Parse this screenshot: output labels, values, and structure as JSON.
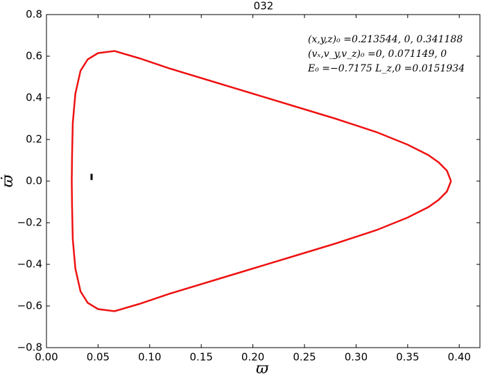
{
  "chart_data": {
    "type": "line",
    "title": "032",
    "xlabel": "ϖ",
    "ylabel": "ϖ̇",
    "annotations": [
      "(x,y,z)₀ =0.213544, 0, 0.341188",
      "(vₓ,v_y,v_z)₀ =0, 0.071149, 0",
      "E₀ =−0.7175  L_z,0 =0.0151934"
    ],
    "xlim": [
      0,
      0.42
    ],
    "ylim": [
      -0.8,
      0.8
    ],
    "xticks": [
      {
        "value": 0,
        "label": "0.00"
      },
      {
        "value": 0.05,
        "label": "0.05"
      },
      {
        "value": 0.1,
        "label": "0.10"
      },
      {
        "value": 0.15,
        "label": "0.15"
      },
      {
        "value": 0.2,
        "label": "0.20"
      },
      {
        "value": 0.25,
        "label": "0.25"
      },
      {
        "value": 0.3,
        "label": "0.30"
      },
      {
        "value": 0.35,
        "label": "0.35"
      },
      {
        "value": 0.4,
        "label": "0.40"
      }
    ],
    "yticks": [
      {
        "value": -0.8,
        "label": "−0.8"
      },
      {
        "value": -0.6,
        "label": "−0.6"
      },
      {
        "value": -0.4,
        "label": "−0.4"
      },
      {
        "value": -0.2,
        "label": "−0.2"
      },
      {
        "value": 0,
        "label": "0.0"
      },
      0.2,
      0.4,
      0.6,
      0.8
    ],
    "series": [
      {
        "color": "#ee1111",
        "x": [
          0.392,
          0.388,
          0.38,
          0.37,
          0.35,
          0.32,
          0.28,
          0.24,
          0.2,
          0.16,
          0.12,
          0.09,
          0.066,
          0.05,
          0.04,
          0.033,
          0.028,
          0.0255,
          0.0248,
          0.0245,
          0.0248,
          0.0255,
          0.028,
          0.033,
          0.04,
          0.05,
          0.066,
          0.09,
          0.12,
          0.16,
          0.2,
          0.24,
          0.28,
          0.32,
          0.35,
          0.37,
          0.38,
          0.388,
          0.392
        ],
        "y": [
          0,
          0.05,
          0.09,
          0.125,
          0.175,
          0.235,
          0.3,
          0.36,
          0.42,
          0.48,
          0.54,
          0.59,
          0.625,
          0.615,
          0.585,
          0.53,
          0.42,
          0.28,
          0.12,
          0,
          -0.12,
          -0.28,
          -0.42,
          -0.53,
          -0.585,
          -0.615,
          -0.625,
          -0.59,
          -0.54,
          -0.48,
          -0.42,
          -0.36,
          -0.3,
          -0.235,
          -0.175,
          -0.125,
          -0.09,
          -0.05,
          0
        ]
      },
      {
        "color": "#000000",
        "x": [
          0.0437,
          0.0437,
          0.0437
        ],
        "y": [
          0.035,
          0.02,
          0.005
        ]
      }
    ]
  }
}
